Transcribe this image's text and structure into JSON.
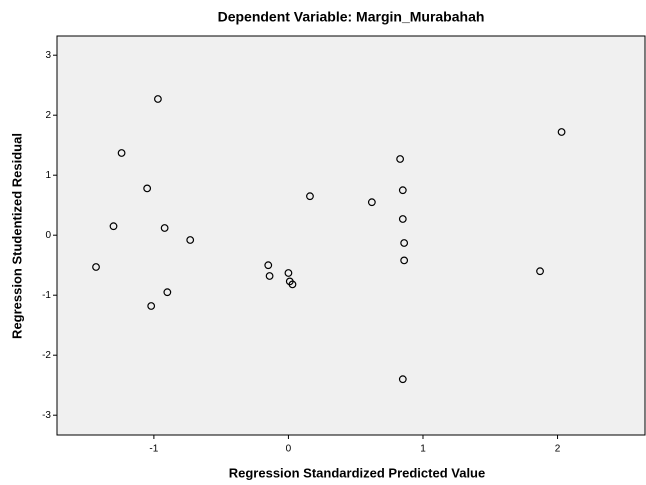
{
  "chart_data": {
    "type": "scatter",
    "title": "Dependent Variable: Margin_Murabahah",
    "x_label": "Regression Standardized Predicted Value",
    "y_label": "Regression Studentized Residual",
    "x": [
      -1.43,
      -1.3,
      -1.24,
      -1.05,
      -1.02,
      -0.97,
      -0.92,
      -0.9,
      -0.73,
      -0.15,
      -0.14,
      0.0,
      0.01,
      0.03,
      0.16,
      0.62,
      0.83,
      0.85,
      0.85,
      0.86,
      0.86,
      0.85,
      1.87,
      2.03
    ],
    "values": [
      -0.53,
      0.15,
      1.37,
      0.78,
      -1.18,
      2.27,
      0.12,
      -0.95,
      -0.08,
      -0.5,
      -0.68,
      -0.63,
      -0.77,
      -0.82,
      0.65,
      0.55,
      1.27,
      0.75,
      0.27,
      -0.13,
      -0.42,
      -2.4,
      -0.6,
      1.72
    ],
    "xlim": [
      -1.72,
      2.65
    ],
    "xticks": [
      -1,
      0,
      1,
      2
    ],
    "ylim": [
      -3.33,
      3.32
    ],
    "yticks": [
      -3,
      -2,
      -1,
      0,
      1,
      2,
      3
    ],
    "marker_color": "#000000",
    "plot_background": "#f0f0f0"
  }
}
